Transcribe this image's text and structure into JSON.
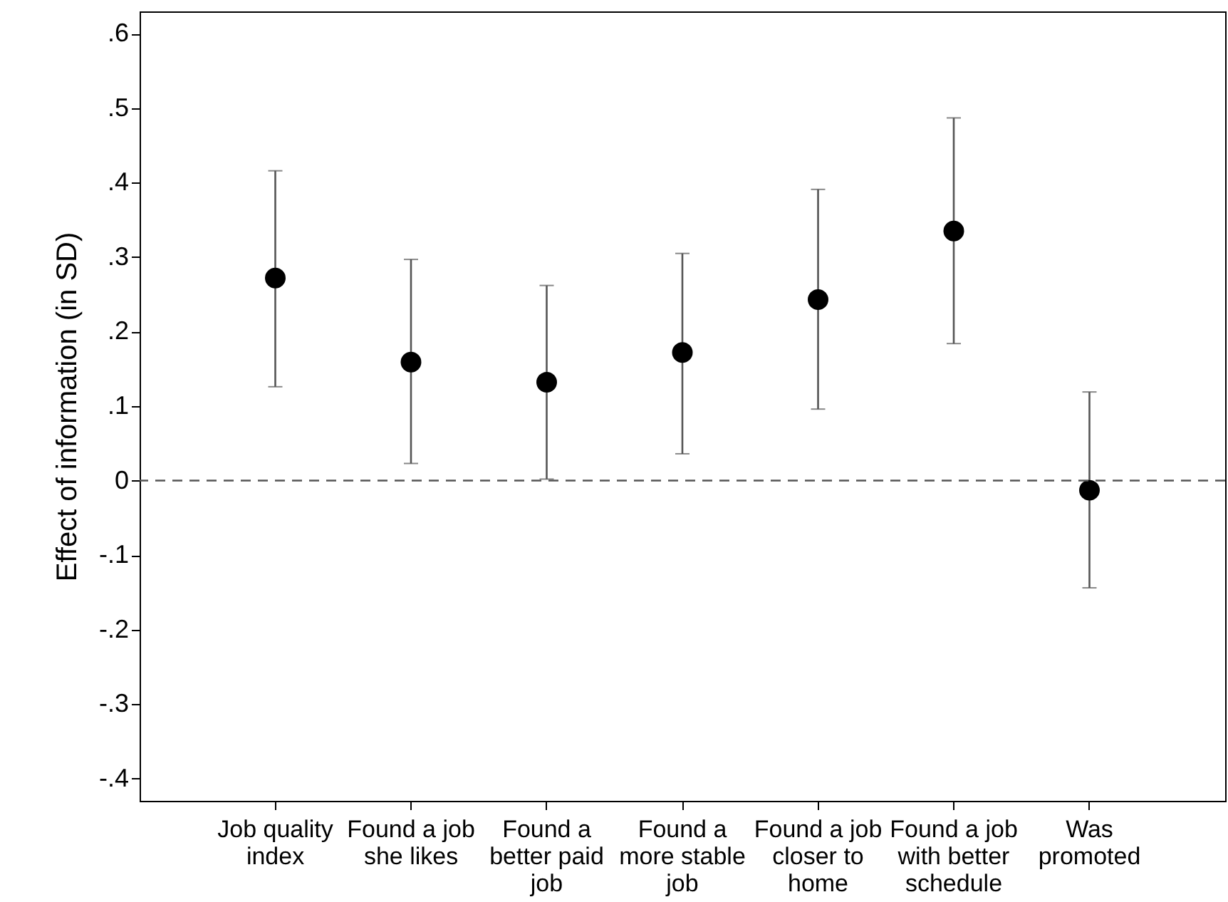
{
  "chart_data": {
    "type": "scatter",
    "ylabel": "Effect of information (in SD)",
    "categories": [
      "Job quality index",
      "Found a job she likes",
      "Found a better paid job",
      "Found a more stable job",
      "Found a job closer to home",
      "Found a job with better schedule",
      "Was promoted"
    ],
    "series": [
      {
        "color": "#000000",
        "values": [
          0.272,
          0.159,
          0.132,
          0.172,
          0.243,
          0.335,
          -0.013
        ],
        "errors": [
          [
            0.126,
            0.416
          ],
          [
            0.023,
            0.297
          ],
          [
            0.002,
            0.262
          ],
          [
            0.036,
            0.305
          ],
          [
            0.096,
            0.391
          ],
          [
            0.184,
            0.487
          ],
          [
            -0.144,
            0.119
          ]
        ]
      }
    ],
    "ylim": [
      -0.43,
      0.63
    ],
    "yticks": [
      {
        "value": -0.4,
        "label": "-.4"
      },
      {
        "value": -0.3,
        "label": "-.3"
      },
      {
        "value": -0.2,
        "label": "-.2"
      },
      {
        "value": -0.1,
        "label": "-.1"
      },
      0,
      {
        "value": 0.1,
        "label": ".1"
      },
      {
        "value": 0.2,
        "label": ".2"
      },
      {
        "value": 0.3,
        "label": ".3"
      },
      {
        "value": 0.4,
        "label": ".4"
      },
      {
        "value": 0.5,
        "label": ".5"
      },
      {
        "value": 0.6,
        "label": ".6"
      }
    ],
    "ref_lines": [
      {
        "axis": "y",
        "value": 0,
        "color": "#555555",
        "line_style": "dashed"
      }
    ],
    "grid": false,
    "marker": "circle"
  }
}
